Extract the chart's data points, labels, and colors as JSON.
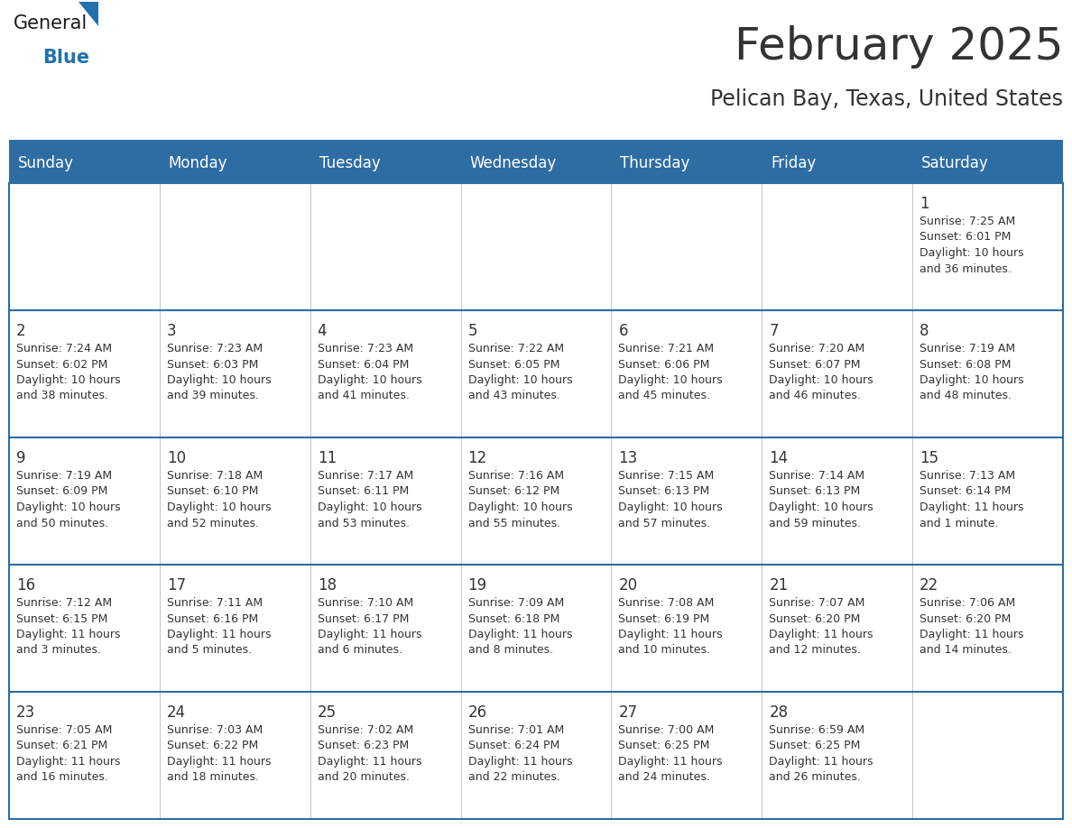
{
  "title": "February 2025",
  "subtitle": "Pelican Bay, Texas, United States",
  "header_bg": "#2E6DA4",
  "header_text_color": "#FFFFFF",
  "cell_bg": "#FFFFFF",
  "border_color": "#2E6DA4",
  "grid_line_color": "#2E6DA4",
  "text_color": "#333333",
  "day_headers": [
    "Sunday",
    "Monday",
    "Tuesday",
    "Wednesday",
    "Thursday",
    "Friday",
    "Saturday"
  ],
  "weeks": [
    [
      {
        "day": "",
        "info": ""
      },
      {
        "day": "",
        "info": ""
      },
      {
        "day": "",
        "info": ""
      },
      {
        "day": "",
        "info": ""
      },
      {
        "day": "",
        "info": ""
      },
      {
        "day": "",
        "info": ""
      },
      {
        "day": "1",
        "info": "Sunrise: 7:25 AM\nSunset: 6:01 PM\nDaylight: 10 hours\nand 36 minutes."
      }
    ],
    [
      {
        "day": "2",
        "info": "Sunrise: 7:24 AM\nSunset: 6:02 PM\nDaylight: 10 hours\nand 38 minutes."
      },
      {
        "day": "3",
        "info": "Sunrise: 7:23 AM\nSunset: 6:03 PM\nDaylight: 10 hours\nand 39 minutes."
      },
      {
        "day": "4",
        "info": "Sunrise: 7:23 AM\nSunset: 6:04 PM\nDaylight: 10 hours\nand 41 minutes."
      },
      {
        "day": "5",
        "info": "Sunrise: 7:22 AM\nSunset: 6:05 PM\nDaylight: 10 hours\nand 43 minutes."
      },
      {
        "day": "6",
        "info": "Sunrise: 7:21 AM\nSunset: 6:06 PM\nDaylight: 10 hours\nand 45 minutes."
      },
      {
        "day": "7",
        "info": "Sunrise: 7:20 AM\nSunset: 6:07 PM\nDaylight: 10 hours\nand 46 minutes."
      },
      {
        "day": "8",
        "info": "Sunrise: 7:19 AM\nSunset: 6:08 PM\nDaylight: 10 hours\nand 48 minutes."
      }
    ],
    [
      {
        "day": "9",
        "info": "Sunrise: 7:19 AM\nSunset: 6:09 PM\nDaylight: 10 hours\nand 50 minutes."
      },
      {
        "day": "10",
        "info": "Sunrise: 7:18 AM\nSunset: 6:10 PM\nDaylight: 10 hours\nand 52 minutes."
      },
      {
        "day": "11",
        "info": "Sunrise: 7:17 AM\nSunset: 6:11 PM\nDaylight: 10 hours\nand 53 minutes."
      },
      {
        "day": "12",
        "info": "Sunrise: 7:16 AM\nSunset: 6:12 PM\nDaylight: 10 hours\nand 55 minutes."
      },
      {
        "day": "13",
        "info": "Sunrise: 7:15 AM\nSunset: 6:13 PM\nDaylight: 10 hours\nand 57 minutes."
      },
      {
        "day": "14",
        "info": "Sunrise: 7:14 AM\nSunset: 6:13 PM\nDaylight: 10 hours\nand 59 minutes."
      },
      {
        "day": "15",
        "info": "Sunrise: 7:13 AM\nSunset: 6:14 PM\nDaylight: 11 hours\nand 1 minute."
      }
    ],
    [
      {
        "day": "16",
        "info": "Sunrise: 7:12 AM\nSunset: 6:15 PM\nDaylight: 11 hours\nand 3 minutes."
      },
      {
        "day": "17",
        "info": "Sunrise: 7:11 AM\nSunset: 6:16 PM\nDaylight: 11 hours\nand 5 minutes."
      },
      {
        "day": "18",
        "info": "Sunrise: 7:10 AM\nSunset: 6:17 PM\nDaylight: 11 hours\nand 6 minutes."
      },
      {
        "day": "19",
        "info": "Sunrise: 7:09 AM\nSunset: 6:18 PM\nDaylight: 11 hours\nand 8 minutes."
      },
      {
        "day": "20",
        "info": "Sunrise: 7:08 AM\nSunset: 6:19 PM\nDaylight: 11 hours\nand 10 minutes."
      },
      {
        "day": "21",
        "info": "Sunrise: 7:07 AM\nSunset: 6:20 PM\nDaylight: 11 hours\nand 12 minutes."
      },
      {
        "day": "22",
        "info": "Sunrise: 7:06 AM\nSunset: 6:20 PM\nDaylight: 11 hours\nand 14 minutes."
      }
    ],
    [
      {
        "day": "23",
        "info": "Sunrise: 7:05 AM\nSunset: 6:21 PM\nDaylight: 11 hours\nand 16 minutes."
      },
      {
        "day": "24",
        "info": "Sunrise: 7:03 AM\nSunset: 6:22 PM\nDaylight: 11 hours\nand 18 minutes."
      },
      {
        "day": "25",
        "info": "Sunrise: 7:02 AM\nSunset: 6:23 PM\nDaylight: 11 hours\nand 20 minutes."
      },
      {
        "day": "26",
        "info": "Sunrise: 7:01 AM\nSunset: 6:24 PM\nDaylight: 11 hours\nand 22 minutes."
      },
      {
        "day": "27",
        "info": "Sunrise: 7:00 AM\nSunset: 6:25 PM\nDaylight: 11 hours\nand 24 minutes."
      },
      {
        "day": "28",
        "info": "Sunrise: 6:59 AM\nSunset: 6:25 PM\nDaylight: 11 hours\nand 26 minutes."
      },
      {
        "day": "",
        "info": ""
      }
    ]
  ],
  "logo_text_general": "General",
  "logo_text_blue": "Blue",
  "logo_color_general": "#1a1a1a",
  "logo_color_blue": "#2270B0",
  "logo_triangle_color": "#2270B0",
  "title_fontsize": 36,
  "subtitle_fontsize": 17,
  "day_header_fontsize": 12,
  "day_num_fontsize": 12,
  "info_fontsize": 9
}
